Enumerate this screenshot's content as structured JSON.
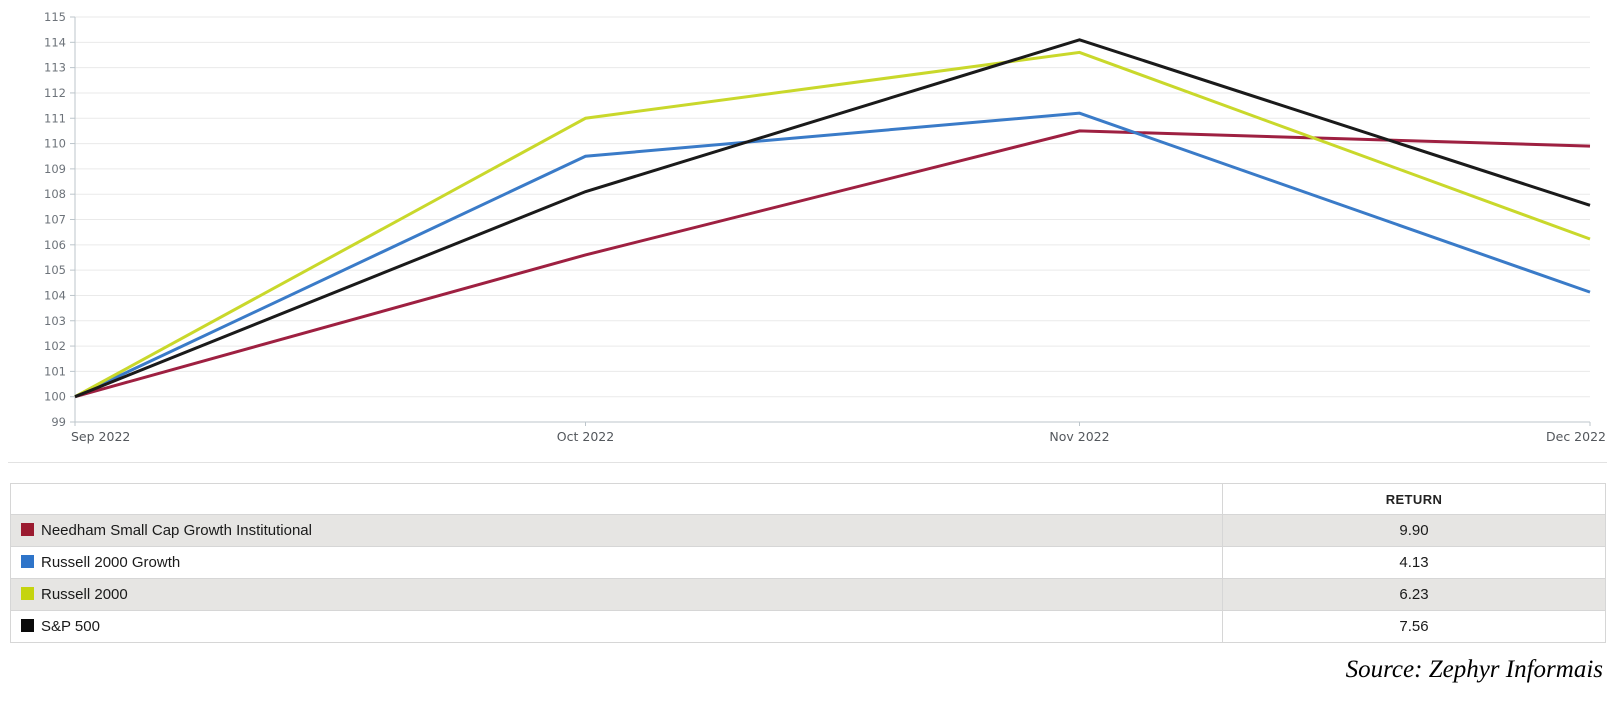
{
  "chart_data": {
    "type": "line",
    "title": "",
    "xlabel": "",
    "ylabel": "",
    "x_labels": [
      "Sep 2022",
      "Oct 2022",
      "Nov 2022",
      "Dec 2022"
    ],
    "ylim": [
      99,
      115
    ],
    "y_ticks": [
      99,
      100,
      101,
      102,
      103,
      104,
      105,
      106,
      107,
      108,
      109,
      110,
      111,
      112,
      113,
      114,
      115
    ],
    "grid": true,
    "legend_position": "table-below",
    "series": [
      {
        "name": "Needham Small Cap Growth Institutional",
        "color": "#9e2041",
        "values": [
          100,
          105.6,
          110.5,
          109.9
        ]
      },
      {
        "name": "Russell 2000 Growth",
        "color": "#3a7bc8",
        "values": [
          100,
          109.5,
          111.2,
          104.13
        ]
      },
      {
        "name": "Russell 2000",
        "color": "#c9d82b",
        "values": [
          100,
          111.0,
          113.6,
          106.23
        ]
      },
      {
        "name": "S&P 500",
        "color": "#1a1a1a",
        "values": [
          100,
          108.1,
          114.1,
          107.56
        ]
      }
    ]
  },
  "table": {
    "header": {
      "name": "",
      "return": "RETURN"
    },
    "rows": [
      {
        "name": "Needham Small Cap Growth Institutional",
        "return": "9.90",
        "color": "#9b1b30"
      },
      {
        "name": "Russell 2000 Growth",
        "return": "4.13",
        "color": "#2e74c9"
      },
      {
        "name": "Russell 2000",
        "return": "6.23",
        "color": "#c5d40e"
      },
      {
        "name": "S&P 500",
        "return": "7.56",
        "color": "#0a0a0a"
      }
    ]
  },
  "source": "Source: Zephyr Informais"
}
